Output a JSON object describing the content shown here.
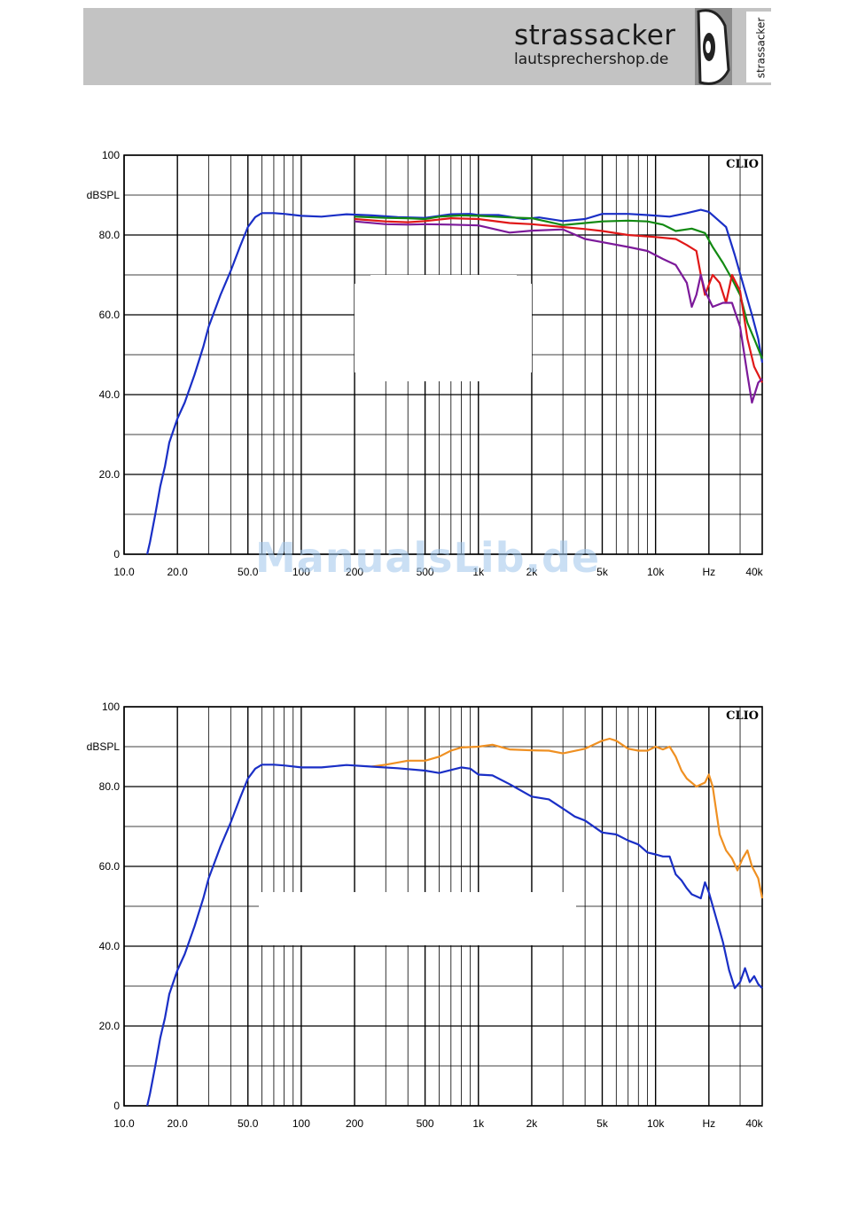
{
  "header": {
    "brand_name": "strassacker",
    "brand_url": "lautsprechershop.de",
    "logo_vertical_text": "strassacker",
    "logo_icon": "speaker-logo-icon"
  },
  "watermark": "ManualsLib.de",
  "colors": {
    "blue": "#1a2fc6",
    "green": "#138a13",
    "red": "#e01818",
    "purple": "#7c1a9a",
    "orange": "#ef9022",
    "grid": "#000000"
  },
  "chart_data": [
    {
      "type": "line",
      "brand_tag": "CLIO",
      "ylabel": "dBSPL",
      "xscale": "log",
      "xlim": [
        10,
        40000
      ],
      "ylim": [
        0,
        100
      ],
      "x_tick_labels": [
        {
          "v": 10,
          "t": "10.0"
        },
        {
          "v": 20,
          "t": "20.0"
        },
        {
          "v": 50,
          "t": "50.0"
        },
        {
          "v": 100,
          "t": "100"
        },
        {
          "v": 200,
          "t": "200"
        },
        {
          "v": 500,
          "t": "500"
        },
        {
          "v": 1000,
          "t": "1k"
        },
        {
          "v": 2000,
          "t": "2k"
        },
        {
          "v": 5000,
          "t": "5k"
        },
        {
          "v": 10000,
          "t": "10k"
        },
        {
          "v": 20000,
          "t": "Hz"
        },
        {
          "v": 40000,
          "t": "40k"
        }
      ],
      "y_tick_labels": [
        {
          "v": 100,
          "t": "100"
        },
        {
          "v": 80,
          "t": "80.0"
        },
        {
          "v": 60,
          "t": "60.0"
        },
        {
          "v": 40,
          "t": "40.0"
        },
        {
          "v": 20,
          "t": "20.0"
        },
        {
          "v": 0,
          "t": "0"
        }
      ],
      "series": [
        {
          "color": "#1a2fc6",
          "points": [
            [
              13.5,
              0
            ],
            [
              14,
              3
            ],
            [
              15,
              10
            ],
            [
              16,
              17
            ],
            [
              17,
              22
            ],
            [
              18,
              28
            ],
            [
              20,
              34
            ],
            [
              22,
              38
            ],
            [
              25,
              45
            ],
            [
              28,
              52
            ],
            [
              30,
              57
            ],
            [
              35,
              65
            ],
            [
              40,
              71
            ],
            [
              45,
              77
            ],
            [
              50,
              82
            ],
            [
              55,
              84.5
            ],
            [
              60,
              85.5
            ],
            [
              70,
              85.5
            ],
            [
              80,
              85.3
            ],
            [
              100,
              84.8
            ],
            [
              130,
              84.6
            ],
            [
              180,
              85.2
            ],
            [
              250,
              84.9
            ],
            [
              350,
              84.5
            ],
            [
              500,
              84.3
            ],
            [
              700,
              85.2
            ],
            [
              900,
              85.3
            ],
            [
              1000,
              85
            ],
            [
              1300,
              85
            ],
            [
              1800,
              84
            ],
            [
              2200,
              84.4
            ],
            [
              3000,
              83.5
            ],
            [
              4000,
              84
            ],
            [
              5000,
              85.3
            ],
            [
              7000,
              85.3
            ],
            [
              9000,
              85
            ],
            [
              12000,
              84.6
            ],
            [
              15000,
              85.5
            ],
            [
              18000,
              86.3
            ],
            [
              20000,
              85.8
            ],
            [
              25000,
              82
            ],
            [
              28000,
              75
            ],
            [
              32000,
              66
            ],
            [
              35000,
              60
            ],
            [
              38000,
              54
            ],
            [
              40000,
              48
            ]
          ]
        },
        {
          "color": "#138a13",
          "points": [
            [
              200,
              84.6
            ],
            [
              300,
              84.3
            ],
            [
              400,
              84.2
            ],
            [
              500,
              84
            ],
            [
              600,
              84.6
            ],
            [
              800,
              84.9
            ],
            [
              1000,
              84.8
            ],
            [
              1500,
              84.4
            ],
            [
              2000,
              84.2
            ],
            [
              3000,
              82.5
            ],
            [
              4000,
              83
            ],
            [
              5000,
              83.4
            ],
            [
              7000,
              83.6
            ],
            [
              9000,
              83.4
            ],
            [
              11000,
              82.6
            ],
            [
              13000,
              81
            ],
            [
              16000,
              81.6
            ],
            [
              19000,
              80.5
            ],
            [
              21000,
              77
            ],
            [
              24000,
              73
            ],
            [
              27000,
              69
            ],
            [
              30000,
              65
            ],
            [
              33000,
              58
            ],
            [
              36000,
              54
            ],
            [
              40000,
              49
            ]
          ]
        },
        {
          "color": "#e01818",
          "points": [
            [
              200,
              84
            ],
            [
              300,
              83.4
            ],
            [
              400,
              83.2
            ],
            [
              500,
              83.5
            ],
            [
              700,
              84.2
            ],
            [
              1000,
              84
            ],
            [
              1500,
              83
            ],
            [
              2000,
              82.7
            ],
            [
              3000,
              82
            ],
            [
              4000,
              81.5
            ],
            [
              5000,
              81
            ],
            [
              7000,
              80
            ],
            [
              10000,
              79.5
            ],
            [
              13000,
              79
            ],
            [
              15000,
              77.5
            ],
            [
              17000,
              76
            ],
            [
              18000,
              70
            ],
            [
              19000,
              65
            ],
            [
              21000,
              70
            ],
            [
              23000,
              68
            ],
            [
              25000,
              63
            ],
            [
              27000,
              70
            ],
            [
              30000,
              66
            ],
            [
              33000,
              54
            ],
            [
              36000,
              47
            ],
            [
              40000,
              43
            ]
          ]
        },
        {
          "color": "#7c1a9a",
          "points": [
            [
              200,
              83.4
            ],
            [
              300,
              82.7
            ],
            [
              400,
              82.6
            ],
            [
              500,
              82.7
            ],
            [
              700,
              82.6
            ],
            [
              1000,
              82.4
            ],
            [
              1500,
              80.6
            ],
            [
              2000,
              81.1
            ],
            [
              3000,
              81.4
            ],
            [
              4000,
              79
            ],
            [
              5000,
              78.2
            ],
            [
              7000,
              77
            ],
            [
              9000,
              76
            ],
            [
              11000,
              74
            ],
            [
              13000,
              72.5
            ],
            [
              15000,
              68
            ],
            [
              16000,
              62
            ],
            [
              17000,
              65
            ],
            [
              18000,
              70
            ],
            [
              19000,
              66
            ],
            [
              21000,
              62
            ],
            [
              24000,
              63
            ],
            [
              27000,
              63
            ],
            [
              30000,
              57
            ],
            [
              33000,
              45
            ],
            [
              35000,
              38
            ],
            [
              38000,
              43
            ],
            [
              40000,
              44
            ]
          ]
        }
      ]
    },
    {
      "type": "line",
      "brand_tag": "CLIO",
      "ylabel": "dBSPL",
      "xscale": "log",
      "xlim": [
        10,
        40000
      ],
      "ylim": [
        0,
        100
      ],
      "x_tick_labels": [
        {
          "v": 10,
          "t": "10.0"
        },
        {
          "v": 20,
          "t": "20.0"
        },
        {
          "v": 50,
          "t": "50.0"
        },
        {
          "v": 100,
          "t": "100"
        },
        {
          "v": 200,
          "t": "200"
        },
        {
          "v": 500,
          "t": "500"
        },
        {
          "v": 1000,
          "t": "1k"
        },
        {
          "v": 2000,
          "t": "2k"
        },
        {
          "v": 5000,
          "t": "5k"
        },
        {
          "v": 10000,
          "t": "10k"
        },
        {
          "v": 20000,
          "t": "Hz"
        },
        {
          "v": 40000,
          "t": "40k"
        }
      ],
      "y_tick_labels": [
        {
          "v": 100,
          "t": "100"
        },
        {
          "v": 80,
          "t": "80.0"
        },
        {
          "v": 60,
          "t": "60.0"
        },
        {
          "v": 40,
          "t": "40.0"
        },
        {
          "v": 20,
          "t": "20.0"
        },
        {
          "v": 0,
          "t": "0"
        }
      ],
      "series": [
        {
          "color": "#ef9022",
          "points": [
            [
              250,
              85
            ],
            [
              300,
              85.5
            ],
            [
              400,
              86.5
            ],
            [
              500,
              86.5
            ],
            [
              600,
              87.5
            ],
            [
              700,
              89
            ],
            [
              800,
              89.8
            ],
            [
              1000,
              90
            ],
            [
              1200,
              90.5
            ],
            [
              1500,
              89.3
            ],
            [
              2000,
              89.1
            ],
            [
              2500,
              89
            ],
            [
              3000,
              88.3
            ],
            [
              4000,
              89.5
            ],
            [
              5000,
              91.5
            ],
            [
              5500,
              92
            ],
            [
              6000,
              91.5
            ],
            [
              7000,
              89.5
            ],
            [
              8000,
              89
            ],
            [
              9000,
              89
            ],
            [
              10000,
              90
            ],
            [
              11000,
              89.3
            ],
            [
              12000,
              90
            ],
            [
              13000,
              87.5
            ],
            [
              14000,
              84
            ],
            [
              15000,
              82
            ],
            [
              17000,
              80
            ],
            [
              19000,
              81
            ],
            [
              20000,
              83
            ],
            [
              21000,
              80
            ],
            [
              23000,
              68
            ],
            [
              25000,
              64
            ],
            [
              27000,
              62
            ],
            [
              29000,
              59
            ],
            [
              31000,
              62
            ],
            [
              33000,
              64
            ],
            [
              35000,
              60
            ],
            [
              38000,
              57
            ],
            [
              40000,
              52
            ]
          ]
        },
        {
          "color": "#1a2fc6",
          "points": [
            [
              13.5,
              0
            ],
            [
              14,
              3
            ],
            [
              15,
              10
            ],
            [
              16,
              17
            ],
            [
              17,
              22
            ],
            [
              18,
              28
            ],
            [
              20,
              34
            ],
            [
              22,
              38
            ],
            [
              25,
              45
            ],
            [
              28,
              52
            ],
            [
              30,
              57
            ],
            [
              35,
              65
            ],
            [
              40,
              71
            ],
            [
              45,
              77
            ],
            [
              50,
              82
            ],
            [
              55,
              84.5
            ],
            [
              60,
              85.5
            ],
            [
              70,
              85.5
            ],
            [
              80,
              85.3
            ],
            [
              100,
              84.8
            ],
            [
              130,
              84.8
            ],
            [
              180,
              85.4
            ],
            [
              250,
              85
            ],
            [
              350,
              84.6
            ],
            [
              500,
              84
            ],
            [
              600,
              83.4
            ],
            [
              800,
              84.8
            ],
            [
              900,
              84.5
            ],
            [
              1000,
              83
            ],
            [
              1200,
              82.8
            ],
            [
              1500,
              80.6
            ],
            [
              2000,
              77.5
            ],
            [
              2500,
              76.8
            ],
            [
              3000,
              74.5
            ],
            [
              3500,
              72.5
            ],
            [
              4000,
              71.5
            ],
            [
              5000,
              68.5
            ],
            [
              6000,
              68
            ],
            [
              7000,
              66.5
            ],
            [
              8000,
              65.5
            ],
            [
              9000,
              63.5
            ],
            [
              10000,
              63
            ],
            [
              11000,
              62.5
            ],
            [
              12000,
              62.5
            ],
            [
              13000,
              58
            ],
            [
              14000,
              56.5
            ],
            [
              15000,
              54.5
            ],
            [
              16000,
              53
            ],
            [
              17000,
              52.5
            ],
            [
              18000,
              52
            ],
            [
              19000,
              56
            ],
            [
              20000,
              53.5
            ],
            [
              22000,
              47
            ],
            [
              24000,
              41
            ],
            [
              26000,
              34
            ],
            [
              28000,
              29.5
            ],
            [
              30000,
              31
            ],
            [
              32000,
              34.5
            ],
            [
              34000,
              31
            ],
            [
              36000,
              32.5
            ],
            [
              38000,
              30.5
            ],
            [
              40000,
              29.5
            ]
          ]
        }
      ]
    }
  ]
}
